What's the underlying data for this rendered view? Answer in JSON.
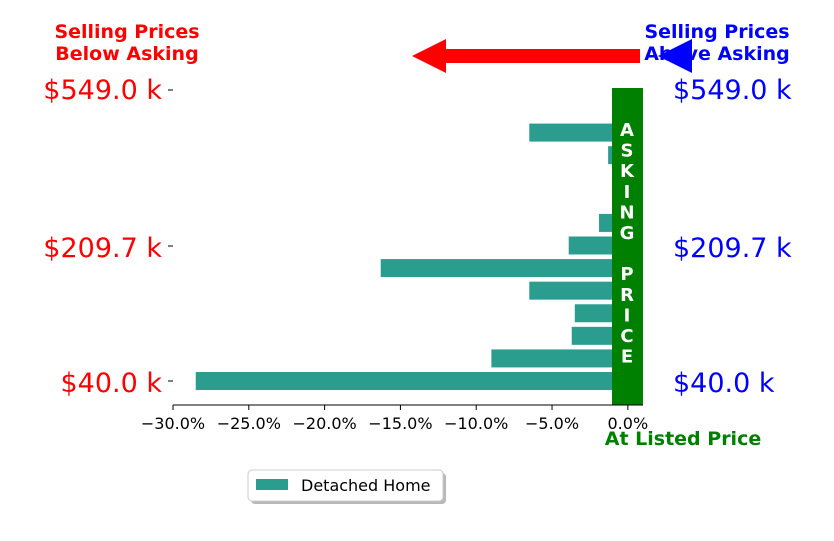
{
  "headers": {
    "left": [
      "Selling Prices",
      "Below Asking"
    ],
    "right": [
      "Selling Prices",
      "Above Asking"
    ],
    "left_color": "#ff0000",
    "right_color": "#0000ff"
  },
  "asking_price_label": "ASKING PRICE",
  "asking_price_color": "#008000",
  "at_listed_price": "At Listed Price",
  "price_labels": [
    "$549.0 k",
    "$209.7 k",
    "$40.0 k"
  ],
  "legend": {
    "label": "Detached Home",
    "color": "#2a9d8f"
  },
  "chart_data": {
    "type": "bar",
    "orientation": "horizontal",
    "series": [
      {
        "name": "Detached Home",
        "values": [
          0.3,
          -6.5,
          -1.3,
          0.2,
          0.2,
          -1.9,
          -3.9,
          -16.3,
          -6.5,
          -3.5,
          -3.7,
          -9.0,
          -28.5
        ]
      }
    ],
    "xlim": [
      -30,
      1
    ],
    "xticks": [
      "−30.0%",
      "−25.0%",
      "−20.0%",
      "−15.0%",
      "−10.0%",
      "−5.0%",
      "0.0%"
    ],
    "xtick_values": [
      -30,
      -25,
      -20,
      -15,
      -10,
      -5,
      0
    ],
    "grid": false,
    "legend_position": "bottom-center"
  }
}
